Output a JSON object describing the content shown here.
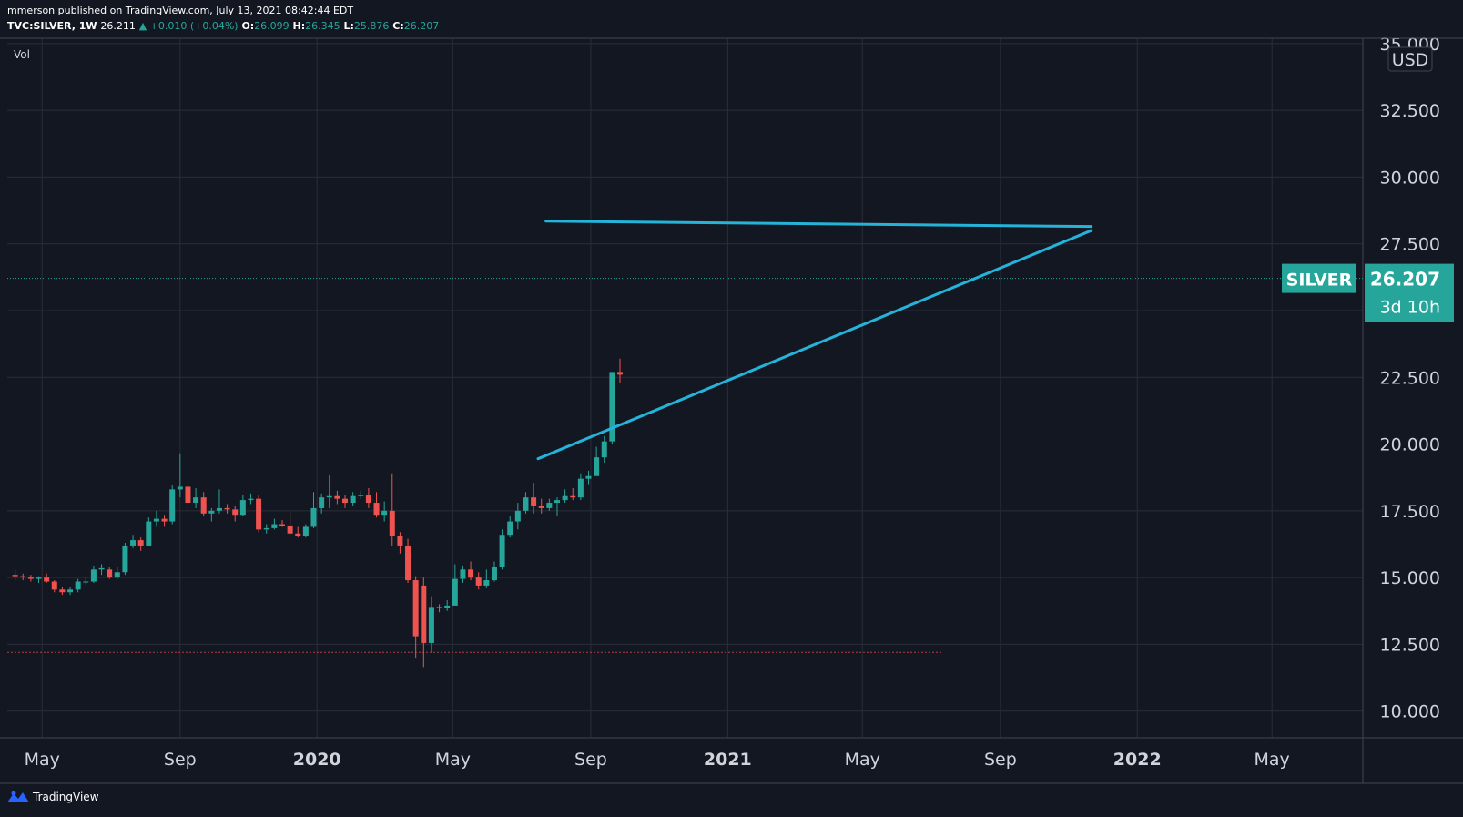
{
  "header": {
    "line1": "mmerson published on TradingView.com, July 13, 2021 08:42:44 EDT",
    "symbol": "TVC:SILVER, 1W",
    "last": "26.211",
    "change": "▲ +0.010 (+0.04%)",
    "o_label": "O:",
    "o_value": "26.099",
    "h_label": "H:",
    "h_value": "26.345",
    "l_label": "L:",
    "l_value": "25.876",
    "c_label": "C:",
    "c_value": "26.207"
  },
  "footer": {
    "brand": "TradingView"
  },
  "colors": {
    "background": "#131722",
    "up": "#26a69a",
    "down": "#ef5350",
    "trendline": "#26b3d9",
    "grid": "#2a2e39",
    "badge": "#26a69a"
  },
  "chart_data": {
    "type": "candlestick",
    "title": "",
    "pane_label": "Vol",
    "ylabel": "",
    "currency_label": "USD",
    "ylim": [
      9.0,
      35.2
    ],
    "y_ticks": [
      10.0,
      12.5,
      15.0,
      17.5,
      20.0,
      22.5,
      25.0,
      27.5,
      30.0,
      32.5,
      35.0
    ],
    "y_tick_labels": [
      "10.000",
      "12.500",
      "15.000",
      "17.500",
      "20.000",
      "22.500",
      "25.000",
      "27.500",
      "30.000",
      "32.500",
      "35.000"
    ],
    "x_ticks": [
      {
        "date": "2019-05-01",
        "label": "May",
        "bold": false
      },
      {
        "date": "2019-09-01",
        "label": "Sep",
        "bold": false
      },
      {
        "date": "2020-01-01",
        "label": "2020",
        "bold": true
      },
      {
        "date": "2020-05-01",
        "label": "May",
        "bold": false
      },
      {
        "date": "2020-09-01",
        "label": "Sep",
        "bold": false
      },
      {
        "date": "2021-01-01",
        "label": "2021",
        "bold": true
      },
      {
        "date": "2021-05-01",
        "label": "May",
        "bold": false
      },
      {
        "date": "2021-09-01",
        "label": "Sep",
        "bold": false
      },
      {
        "date": "2022-01-01",
        "label": "2022",
        "bold": true
      },
      {
        "date": "2022-05-01",
        "label": "May",
        "bold": false
      }
    ],
    "x_start": "2019-03-31",
    "x_end": "2022-07-21",
    "last_price": {
      "value": 26.207,
      "label": "26.207",
      "symbol_label": "SILVER",
      "countdown": "3d 10h"
    },
    "support_level": 12.2,
    "trendlines": [
      {
        "name": "resistance",
        "from": [
          "2020-07-23",
          28.35
        ],
        "to": [
          "2021-11-21",
          28.15
        ]
      },
      {
        "name": "support",
        "from": [
          "2020-07-16",
          19.45
        ],
        "to": [
          "2021-11-21",
          28.0
        ]
      }
    ],
    "candles": [
      {
        "d": "2019-04-07",
        "o": 15.1,
        "h": 15.3,
        "l": 14.9,
        "c": 15.05
      },
      {
        "d": "2019-04-14",
        "o": 15.05,
        "h": 15.15,
        "l": 14.9,
        "c": 15.0
      },
      {
        "d": "2019-04-21",
        "o": 15.0,
        "h": 15.1,
        "l": 14.85,
        "c": 14.95
      },
      {
        "d": "2019-04-28",
        "o": 14.95,
        "h": 15.05,
        "l": 14.8,
        "c": 15.0
      },
      {
        "d": "2019-05-05",
        "o": 15.0,
        "h": 15.15,
        "l": 14.8,
        "c": 14.85
      },
      {
        "d": "2019-05-12",
        "o": 14.85,
        "h": 14.9,
        "l": 14.45,
        "c": 14.55
      },
      {
        "d": "2019-05-19",
        "o": 14.55,
        "h": 14.65,
        "l": 14.35,
        "c": 14.45
      },
      {
        "d": "2019-05-26",
        "o": 14.45,
        "h": 14.65,
        "l": 14.35,
        "c": 14.55
      },
      {
        "d": "2019-06-02",
        "o": 14.55,
        "h": 14.95,
        "l": 14.45,
        "c": 14.85
      },
      {
        "d": "2019-06-09",
        "o": 14.85,
        "h": 15.0,
        "l": 14.75,
        "c": 14.85
      },
      {
        "d": "2019-06-16",
        "o": 14.85,
        "h": 15.45,
        "l": 14.8,
        "c": 15.3
      },
      {
        "d": "2019-06-23",
        "o": 15.3,
        "h": 15.5,
        "l": 15.1,
        "c": 15.35
      },
      {
        "d": "2019-06-30",
        "o": 15.3,
        "h": 15.4,
        "l": 14.95,
        "c": 15.0
      },
      {
        "d": "2019-07-07",
        "o": 15.0,
        "h": 15.4,
        "l": 14.95,
        "c": 15.2
      },
      {
        "d": "2019-07-14",
        "o": 15.2,
        "h": 16.3,
        "l": 15.1,
        "c": 16.2
      },
      {
        "d": "2019-07-21",
        "o": 16.2,
        "h": 16.6,
        "l": 16.1,
        "c": 16.4
      },
      {
        "d": "2019-07-28",
        "o": 16.4,
        "h": 16.5,
        "l": 16.0,
        "c": 16.2
      },
      {
        "d": "2019-08-04",
        "o": 16.2,
        "h": 17.25,
        "l": 16.2,
        "c": 17.1
      },
      {
        "d": "2019-08-11",
        "o": 17.1,
        "h": 17.5,
        "l": 16.9,
        "c": 17.2
      },
      {
        "d": "2019-08-18",
        "o": 17.2,
        "h": 17.35,
        "l": 16.9,
        "c": 17.1
      },
      {
        "d": "2019-08-25",
        "o": 17.1,
        "h": 18.45,
        "l": 17.0,
        "c": 18.3
      },
      {
        "d": "2019-09-01",
        "o": 18.3,
        "h": 19.65,
        "l": 18.0,
        "c": 18.4
      },
      {
        "d": "2019-09-08",
        "o": 18.4,
        "h": 18.6,
        "l": 17.5,
        "c": 17.8
      },
      {
        "d": "2019-09-15",
        "o": 17.8,
        "h": 18.35,
        "l": 17.6,
        "c": 18.0
      },
      {
        "d": "2019-09-22",
        "o": 18.0,
        "h": 18.2,
        "l": 17.3,
        "c": 17.4
      },
      {
        "d": "2019-09-29",
        "o": 17.4,
        "h": 17.6,
        "l": 17.1,
        "c": 17.5
      },
      {
        "d": "2019-10-06",
        "o": 17.5,
        "h": 18.3,
        "l": 17.4,
        "c": 17.6
      },
      {
        "d": "2019-10-13",
        "o": 17.6,
        "h": 17.75,
        "l": 17.4,
        "c": 17.55
      },
      {
        "d": "2019-10-20",
        "o": 17.55,
        "h": 17.7,
        "l": 17.1,
        "c": 17.35
      },
      {
        "d": "2019-10-27",
        "o": 17.35,
        "h": 18.1,
        "l": 17.3,
        "c": 17.9
      },
      {
        "d": "2019-11-03",
        "o": 17.9,
        "h": 18.15,
        "l": 17.75,
        "c": 17.95
      },
      {
        "d": "2019-11-10",
        "o": 17.95,
        "h": 18.1,
        "l": 16.7,
        "c": 16.8
      },
      {
        "d": "2019-11-17",
        "o": 16.8,
        "h": 17.0,
        "l": 16.65,
        "c": 16.85
      },
      {
        "d": "2019-11-24",
        "o": 16.85,
        "h": 17.2,
        "l": 16.8,
        "c": 17.0
      },
      {
        "d": "2019-12-01",
        "o": 17.0,
        "h": 17.15,
        "l": 16.9,
        "c": 16.95
      },
      {
        "d": "2019-12-08",
        "o": 16.95,
        "h": 17.45,
        "l": 16.6,
        "c": 16.65
      },
      {
        "d": "2019-12-15",
        "o": 16.65,
        "h": 16.9,
        "l": 16.5,
        "c": 16.55
      },
      {
        "d": "2019-12-22",
        "o": 16.55,
        "h": 17.0,
        "l": 16.5,
        "c": 16.9
      },
      {
        "d": "2019-12-29",
        "o": 16.9,
        "h": 18.2,
        "l": 16.85,
        "c": 17.6
      },
      {
        "d": "2020-01-05",
        "o": 17.6,
        "h": 18.15,
        "l": 17.4,
        "c": 18.0
      },
      {
        "d": "2020-01-12",
        "o": 18.0,
        "h": 18.85,
        "l": 17.6,
        "c": 18.05
      },
      {
        "d": "2020-01-19",
        "o": 18.05,
        "h": 18.25,
        "l": 17.75,
        "c": 17.95
      },
      {
        "d": "2020-01-26",
        "o": 17.95,
        "h": 18.1,
        "l": 17.6,
        "c": 17.8
      },
      {
        "d": "2020-02-02",
        "o": 17.8,
        "h": 18.2,
        "l": 17.7,
        "c": 18.05
      },
      {
        "d": "2020-02-09",
        "o": 18.05,
        "h": 18.25,
        "l": 17.95,
        "c": 18.1
      },
      {
        "d": "2020-02-16",
        "o": 18.1,
        "h": 18.35,
        "l": 17.6,
        "c": 17.8
      },
      {
        "d": "2020-02-23",
        "o": 17.8,
        "h": 18.2,
        "l": 17.25,
        "c": 17.35
      },
      {
        "d": "2020-03-01",
        "o": 17.35,
        "h": 17.85,
        "l": 17.1,
        "c": 17.5
      },
      {
        "d": "2020-03-08",
        "o": 17.5,
        "h": 18.9,
        "l": 16.2,
        "c": 16.55
      },
      {
        "d": "2020-03-15",
        "o": 16.55,
        "h": 16.7,
        "l": 15.9,
        "c": 16.2
      },
      {
        "d": "2020-03-22",
        "o": 16.2,
        "h": 16.45,
        "l": 14.8,
        "c": 14.9
      },
      {
        "d": "2020-03-29",
        "o": 14.9,
        "h": 15.05,
        "l": 12.0,
        "c": 12.8
      },
      {
        "d": "2020-04-05",
        "o": 14.7,
        "h": 15.0,
        "l": 11.65,
        "c": 12.55
      },
      {
        "d": "2020-04-12",
        "o": 12.55,
        "h": 14.3,
        "l": 12.2,
        "c": 13.9
      },
      {
        "d": "2020-04-19",
        "o": 13.9,
        "h": 14.0,
        "l": 13.7,
        "c": 13.85
      },
      {
        "d": "2020-04-26",
        "o": 13.85,
        "h": 14.15,
        "l": 13.75,
        "c": 13.95
      },
      {
        "d": "2020-05-03",
        "o": 13.95,
        "h": 15.5,
        "l": 13.95,
        "c": 14.95
      },
      {
        "d": "2020-05-10",
        "o": 14.95,
        "h": 15.45,
        "l": 14.8,
        "c": 15.3
      },
      {
        "d": "2020-05-17",
        "o": 15.3,
        "h": 15.6,
        "l": 14.9,
        "c": 15.0
      },
      {
        "d": "2020-05-24",
        "o": 15.0,
        "h": 15.2,
        "l": 14.55,
        "c": 14.7
      },
      {
        "d": "2020-05-31",
        "o": 14.7,
        "h": 15.3,
        "l": 14.6,
        "c": 14.9
      },
      {
        "d": "2020-06-07",
        "o": 14.9,
        "h": 15.6,
        "l": 14.85,
        "c": 15.4
      },
      {
        "d": "2020-06-14",
        "o": 15.4,
        "h": 16.8,
        "l": 15.3,
        "c": 16.6
      },
      {
        "d": "2020-06-21",
        "o": 16.6,
        "h": 17.3,
        "l": 16.5,
        "c": 17.1
      },
      {
        "d": "2020-06-28",
        "o": 17.1,
        "h": 17.8,
        "l": 16.8,
        "c": 17.5
      },
      {
        "d": "2020-07-05",
        "o": 17.5,
        "h": 18.2,
        "l": 17.4,
        "c": 18.0
      },
      {
        "d": "2020-07-12",
        "o": 18.0,
        "h": 18.55,
        "l": 17.4,
        "c": 17.7
      },
      {
        "d": "2020-07-19",
        "o": 17.7,
        "h": 17.95,
        "l": 17.4,
        "c": 17.6
      },
      {
        "d": "2020-07-26",
        "o": 17.6,
        "h": 17.95,
        "l": 17.5,
        "c": 17.8
      },
      {
        "d": "2020-08-02",
        "o": 17.8,
        "h": 18.0,
        "l": 17.3,
        "c": 17.9
      },
      {
        "d": "2020-08-09",
        "o": 17.9,
        "h": 18.3,
        "l": 17.8,
        "c": 18.05
      },
      {
        "d": "2020-08-16",
        "o": 18.05,
        "h": 18.35,
        "l": 17.9,
        "c": 18.0
      },
      {
        "d": "2020-08-23",
        "o": 18.0,
        "h": 18.9,
        "l": 17.9,
        "c": 18.7
      },
      {
        "d": "2020-08-30",
        "o": 18.7,
        "h": 19.0,
        "l": 18.5,
        "c": 18.8
      },
      {
        "d": "2020-09-06",
        "o": 18.8,
        "h": 19.9,
        "l": 18.8,
        "c": 19.5
      },
      {
        "d": "2020-09-13",
        "o": 19.5,
        "h": 20.3,
        "l": 19.3,
        "c": 20.1
      },
      {
        "d": "2020-09-20",
        "o": 20.1,
        "h": 22.6,
        "l": 20.0,
        "c": 22.7
      },
      {
        "d": "2020-09-27",
        "o": 22.7,
        "h": 23.2,
        "l": 22.3,
        "c": 22.6
      }
    ]
  }
}
